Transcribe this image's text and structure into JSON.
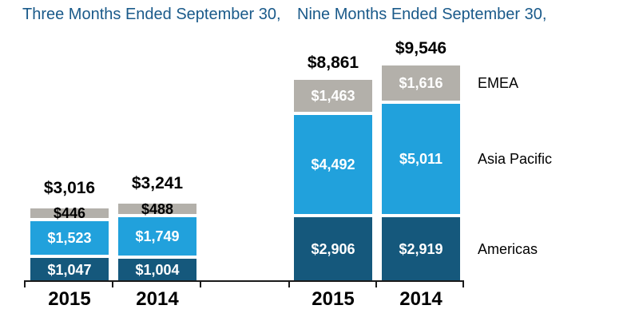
{
  "chart_data": {
    "type": "bar",
    "stacked": true,
    "units": "USD millions",
    "grid": false,
    "groups": [
      {
        "title": "Three Months Ended September 30,"
      },
      {
        "title": "Nine Months Ended September 30,"
      }
    ],
    "series_bottom_to_top": [
      "Americas",
      "Asia Pacific",
      "EMEA"
    ],
    "series_colors": {
      "Americas": "#15587C",
      "Asia Pacific": "#21A1DC",
      "EMEA": "#B3B0AA"
    },
    "legend": [
      {
        "name": "EMEA"
      },
      {
        "name": "Asia Pacific"
      },
      {
        "name": "Americas"
      }
    ],
    "bars": [
      {
        "group": 0,
        "year": "2015",
        "total": 3016,
        "total_label": "$3,016",
        "segments": [
          {
            "series": "Americas",
            "value": 1047,
            "label": "$1,047"
          },
          {
            "series": "Asia Pacific",
            "value": 1523,
            "label": "$1,523"
          },
          {
            "series": "EMEA",
            "value": 446,
            "label": "$446"
          }
        ]
      },
      {
        "group": 0,
        "year": "2014",
        "total": 3241,
        "total_label": "$3,241",
        "segments": [
          {
            "series": "Americas",
            "value": 1004,
            "label": "$1,004"
          },
          {
            "series": "Asia Pacific",
            "value": 1749,
            "label": "$1,749"
          },
          {
            "series": "EMEA",
            "value": 488,
            "label": "$488"
          }
        ]
      },
      {
        "group": 1,
        "year": "2015",
        "total": 8861,
        "total_label": "$8,861",
        "segments": [
          {
            "series": "Americas",
            "value": 2906,
            "label": "$2,906"
          },
          {
            "series": "Asia Pacific",
            "value": 4492,
            "label": "$4,492"
          },
          {
            "series": "EMEA",
            "value": 1463,
            "label": "$1,463"
          }
        ]
      },
      {
        "group": 1,
        "year": "2014",
        "total": 9546,
        "total_label": "$9,546",
        "segments": [
          {
            "series": "Americas",
            "value": 2919,
            "label": "$2,919"
          },
          {
            "series": "Asia Pacific",
            "value": 5011,
            "label": "$5,011"
          },
          {
            "series": "EMEA",
            "value": 1616,
            "label": "$1,616"
          }
        ]
      }
    ],
    "x_tick_labels": [
      "2015",
      "2014",
      "2015",
      "2014"
    ],
    "text_colors": {
      "titles": "#1A5A8A",
      "labels_inside": "#ffffff",
      "labels_small_segment": "#000000"
    }
  }
}
